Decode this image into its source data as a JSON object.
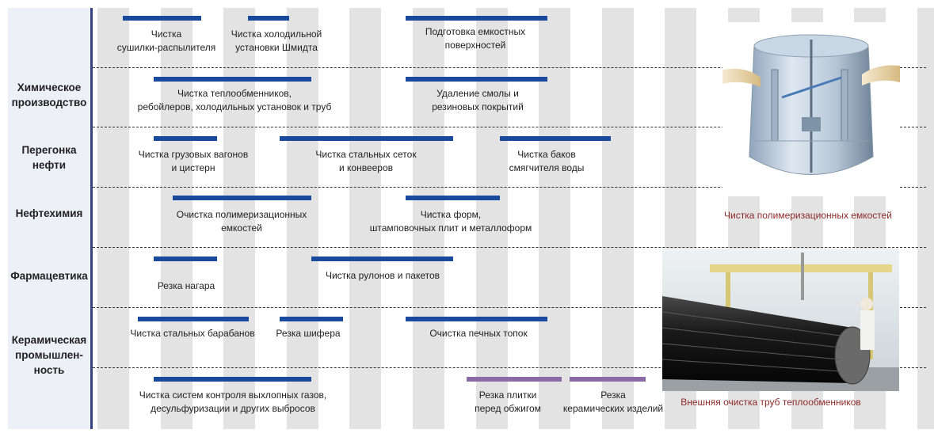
{
  "colors": {
    "bar_blue": "#1a4a9e",
    "bar_purple": "#8b6aa8",
    "caption_red": "#8e2a2a",
    "sidebar": "#eef0f8",
    "stripe": "#e3e3e3"
  },
  "categories": [
    {
      "label": "Химическое\nпроизводство"
    },
    {
      "label": "Перегонка\nнефти"
    },
    {
      "label": "Нефтехимия"
    },
    {
      "label": "Фармацевтика"
    },
    {
      "label": "Керамическая\nпромышлен-\nность"
    }
  ],
  "items": [
    {
      "text": "Чистка\nсушилки-распылителя"
    },
    {
      "text": "Чистка холодильной\nустановки Шмидта"
    },
    {
      "text": "Подготовка емкостных\nповерхностей"
    },
    {
      "text": "Чистка теплообменников,\nребойлеров, холодильных установок и труб"
    },
    {
      "text": "Удаление смолы и\nрезиновых покрытий"
    },
    {
      "text": "Чистка грузовых вагонов\nи цистерн"
    },
    {
      "text": "Чистка стальных сеток\nи конвееров"
    },
    {
      "text": "Чистка баков\nсмягчителя воды"
    },
    {
      "text": "Очистка полимеризационных\nемкостей"
    },
    {
      "text": "Чистка форм,\nштамповочных плит и металлоформ"
    },
    {
      "text": "Резка нагара"
    },
    {
      "text": "Чистка рулонов и пакетов"
    },
    {
      "text": "Чистка стальных барабанов"
    },
    {
      "text": "Резка шифера"
    },
    {
      "text": "Очистка печных топок"
    },
    {
      "text": "Чистка систем контроля выхлопных газов,\nдесульфуризации и других выбросов"
    },
    {
      "text": "Резка плитки\nперед обжигом"
    },
    {
      "text": "Резка\nкерамических изделий"
    }
  ],
  "photos": [
    {
      "icon": "polymerization-vessel-image",
      "caption": "Чистка полимеризационных емкостей"
    },
    {
      "icon": "heat-exchanger-tubes-image",
      "caption": "Внешняя очистка труб теплообменников"
    }
  ]
}
